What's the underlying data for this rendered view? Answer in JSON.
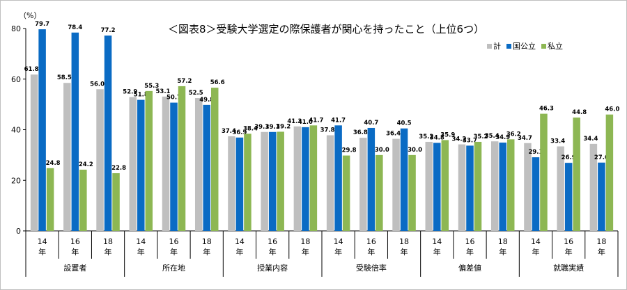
{
  "chart_data": {
    "type": "bar",
    "title": "＜図表8＞受験大学選定の際保護者が関心を持ったこと（上位6つ）",
    "unit_label": "（%）",
    "ylim": [
      0,
      80
    ],
    "yticks": [
      "0",
      "20",
      "40",
      "60",
      "80"
    ],
    "grid": false,
    "legend_position": "top-right",
    "colors": {
      "計": "#bfbfbf",
      "国公立": "#0a6bc4",
      "私立": "#8db753"
    },
    "groups": [
      {
        "label": "設置者",
        "years": [
          "14\n年",
          "16\n年",
          "18\n年"
        ]
      },
      {
        "label": "所在地",
        "years": [
          "14\n年",
          "16\n年",
          "18\n年"
        ]
      },
      {
        "label": "授業内容",
        "years": [
          "14\n年",
          "16\n年",
          "18\n年"
        ]
      },
      {
        "label": "受験倍率",
        "years": [
          "14\n年",
          "16\n年",
          "18\n年"
        ]
      },
      {
        "label": "偏差値",
        "years": [
          "14\n年",
          "16\n年",
          "18\n年"
        ]
      },
      {
        "label": "就職実績",
        "years": [
          "14\n年",
          "16\n年",
          "18\n年"
        ]
      }
    ],
    "series": [
      {
        "name": "計",
        "values": [
          61.8,
          58.5,
          56.0,
          52.9,
          53.1,
          52.5,
          37.4,
          39.1,
          41.3,
          37.8,
          36.8,
          36.4,
          35.2,
          34.2,
          35.4,
          34.7,
          33.4,
          34.4
        ]
      },
      {
        "name": "国公立",
        "values": [
          79.7,
          78.4,
          77.2,
          51.8,
          50.7,
          49.8,
          36.9,
          39.1,
          41.0,
          41.7,
          40.7,
          40.5,
          34.8,
          33.7,
          34.9,
          29.1,
          26.9,
          27.0
        ]
      },
      {
        "name": "私立",
        "values": [
          24.8,
          24.2,
          22.8,
          55.3,
          57.2,
          56.6,
          38.4,
          39.2,
          41.7,
          29.8,
          30.0,
          30.0,
          35.9,
          35.2,
          36.2,
          46.3,
          44.8,
          46.0
        ]
      }
    ]
  }
}
